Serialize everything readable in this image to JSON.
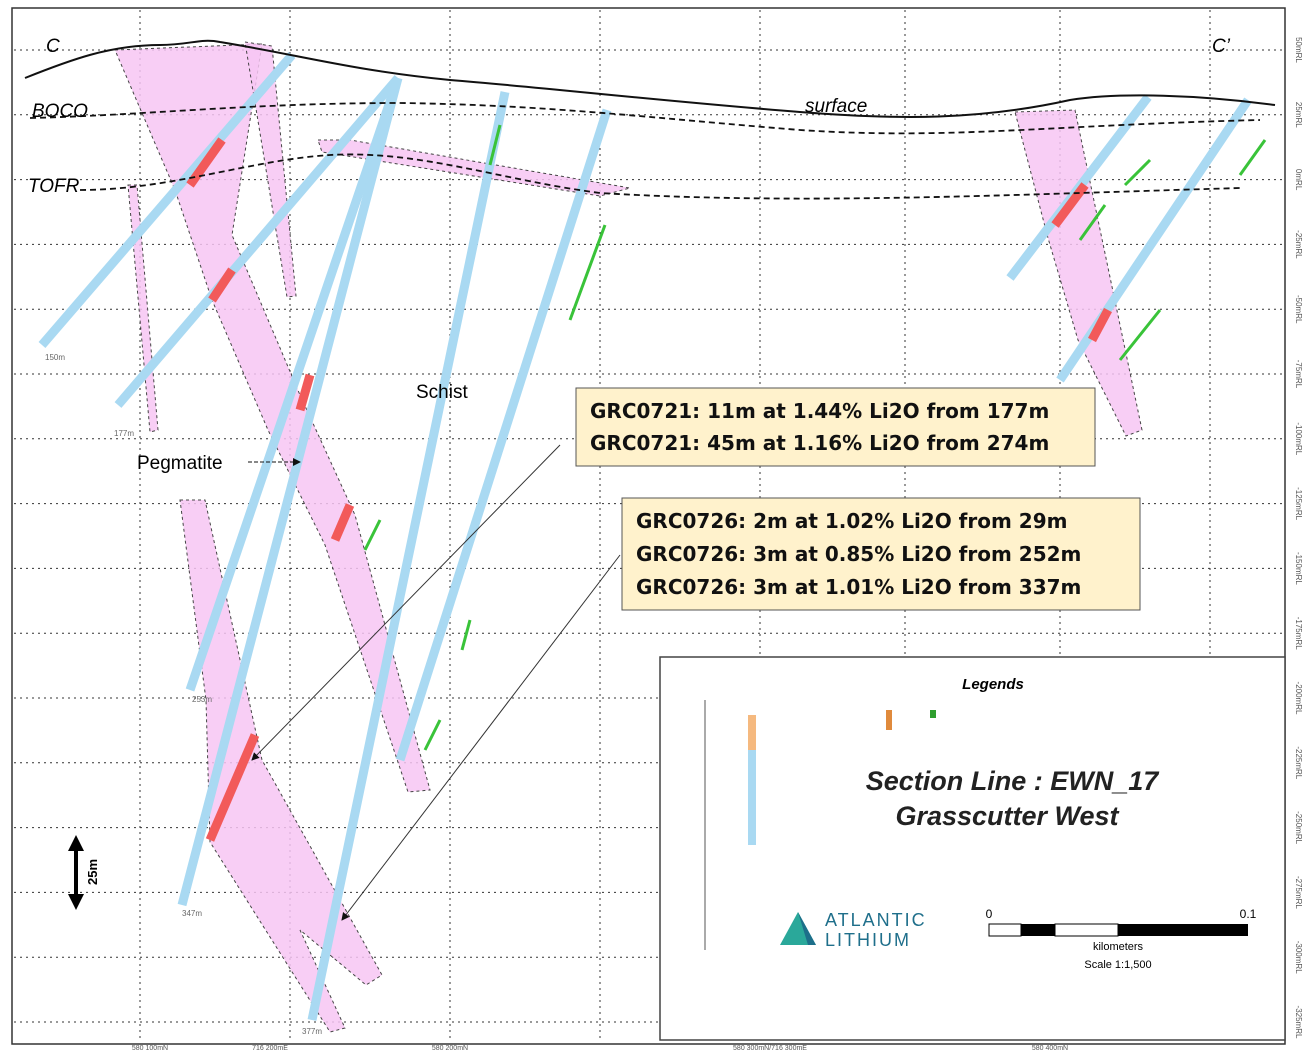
{
  "section": {
    "end_left": "C",
    "end_right": "C’",
    "horizons": [
      "BOCO",
      "TOFR"
    ],
    "surface": "surface",
    "rocks": [
      "Schist",
      "Pegmatite"
    ],
    "hole_depths": [
      "150m",
      "177m",
      "253m",
      "347m",
      "377m"
    ],
    "scale_bar": "25m",
    "rl_labels": [
      "50mRL",
      "25mRL",
      "0mRL",
      "-25mRL",
      "-50mRL",
      "-75mRL",
      "-100mRL",
      "-125mRL",
      "-150mRL",
      "-175mRL",
      "-200mRL",
      "-225mRL",
      "-250mRL",
      "-275mRL",
      "-300mRL",
      "-325mRL"
    ],
    "grid_labels": [
      "580 100mN",
      "716 200mE",
      "580 200mN",
      "580 300mN/716 300mE",
      "580 400mN"
    ]
  },
  "callouts": [
    [
      "GRC0721: 11m at 1.44% Li2O from 177m",
      "GRC0721: 45m at 1.16% Li2O from 274m"
    ],
    [
      "GRC0726: 2m at 1.02% Li2O from 29m",
      "GRC0726: 3m at 0.85% Li2O from 252m",
      "GRC0726: 3m at 1.01% Li2O from 337m"
    ]
  ],
  "legend": {
    "title": "Legends",
    "section_line": "Section Line : EWN_17",
    "project": "Grasscutter West",
    "logo": [
      "ATLANTIC",
      "LITHIUM"
    ],
    "scale_start": "0",
    "scale_end": "0.1",
    "units": "kilometers",
    "scale": "Scale 1:1,500"
  }
}
